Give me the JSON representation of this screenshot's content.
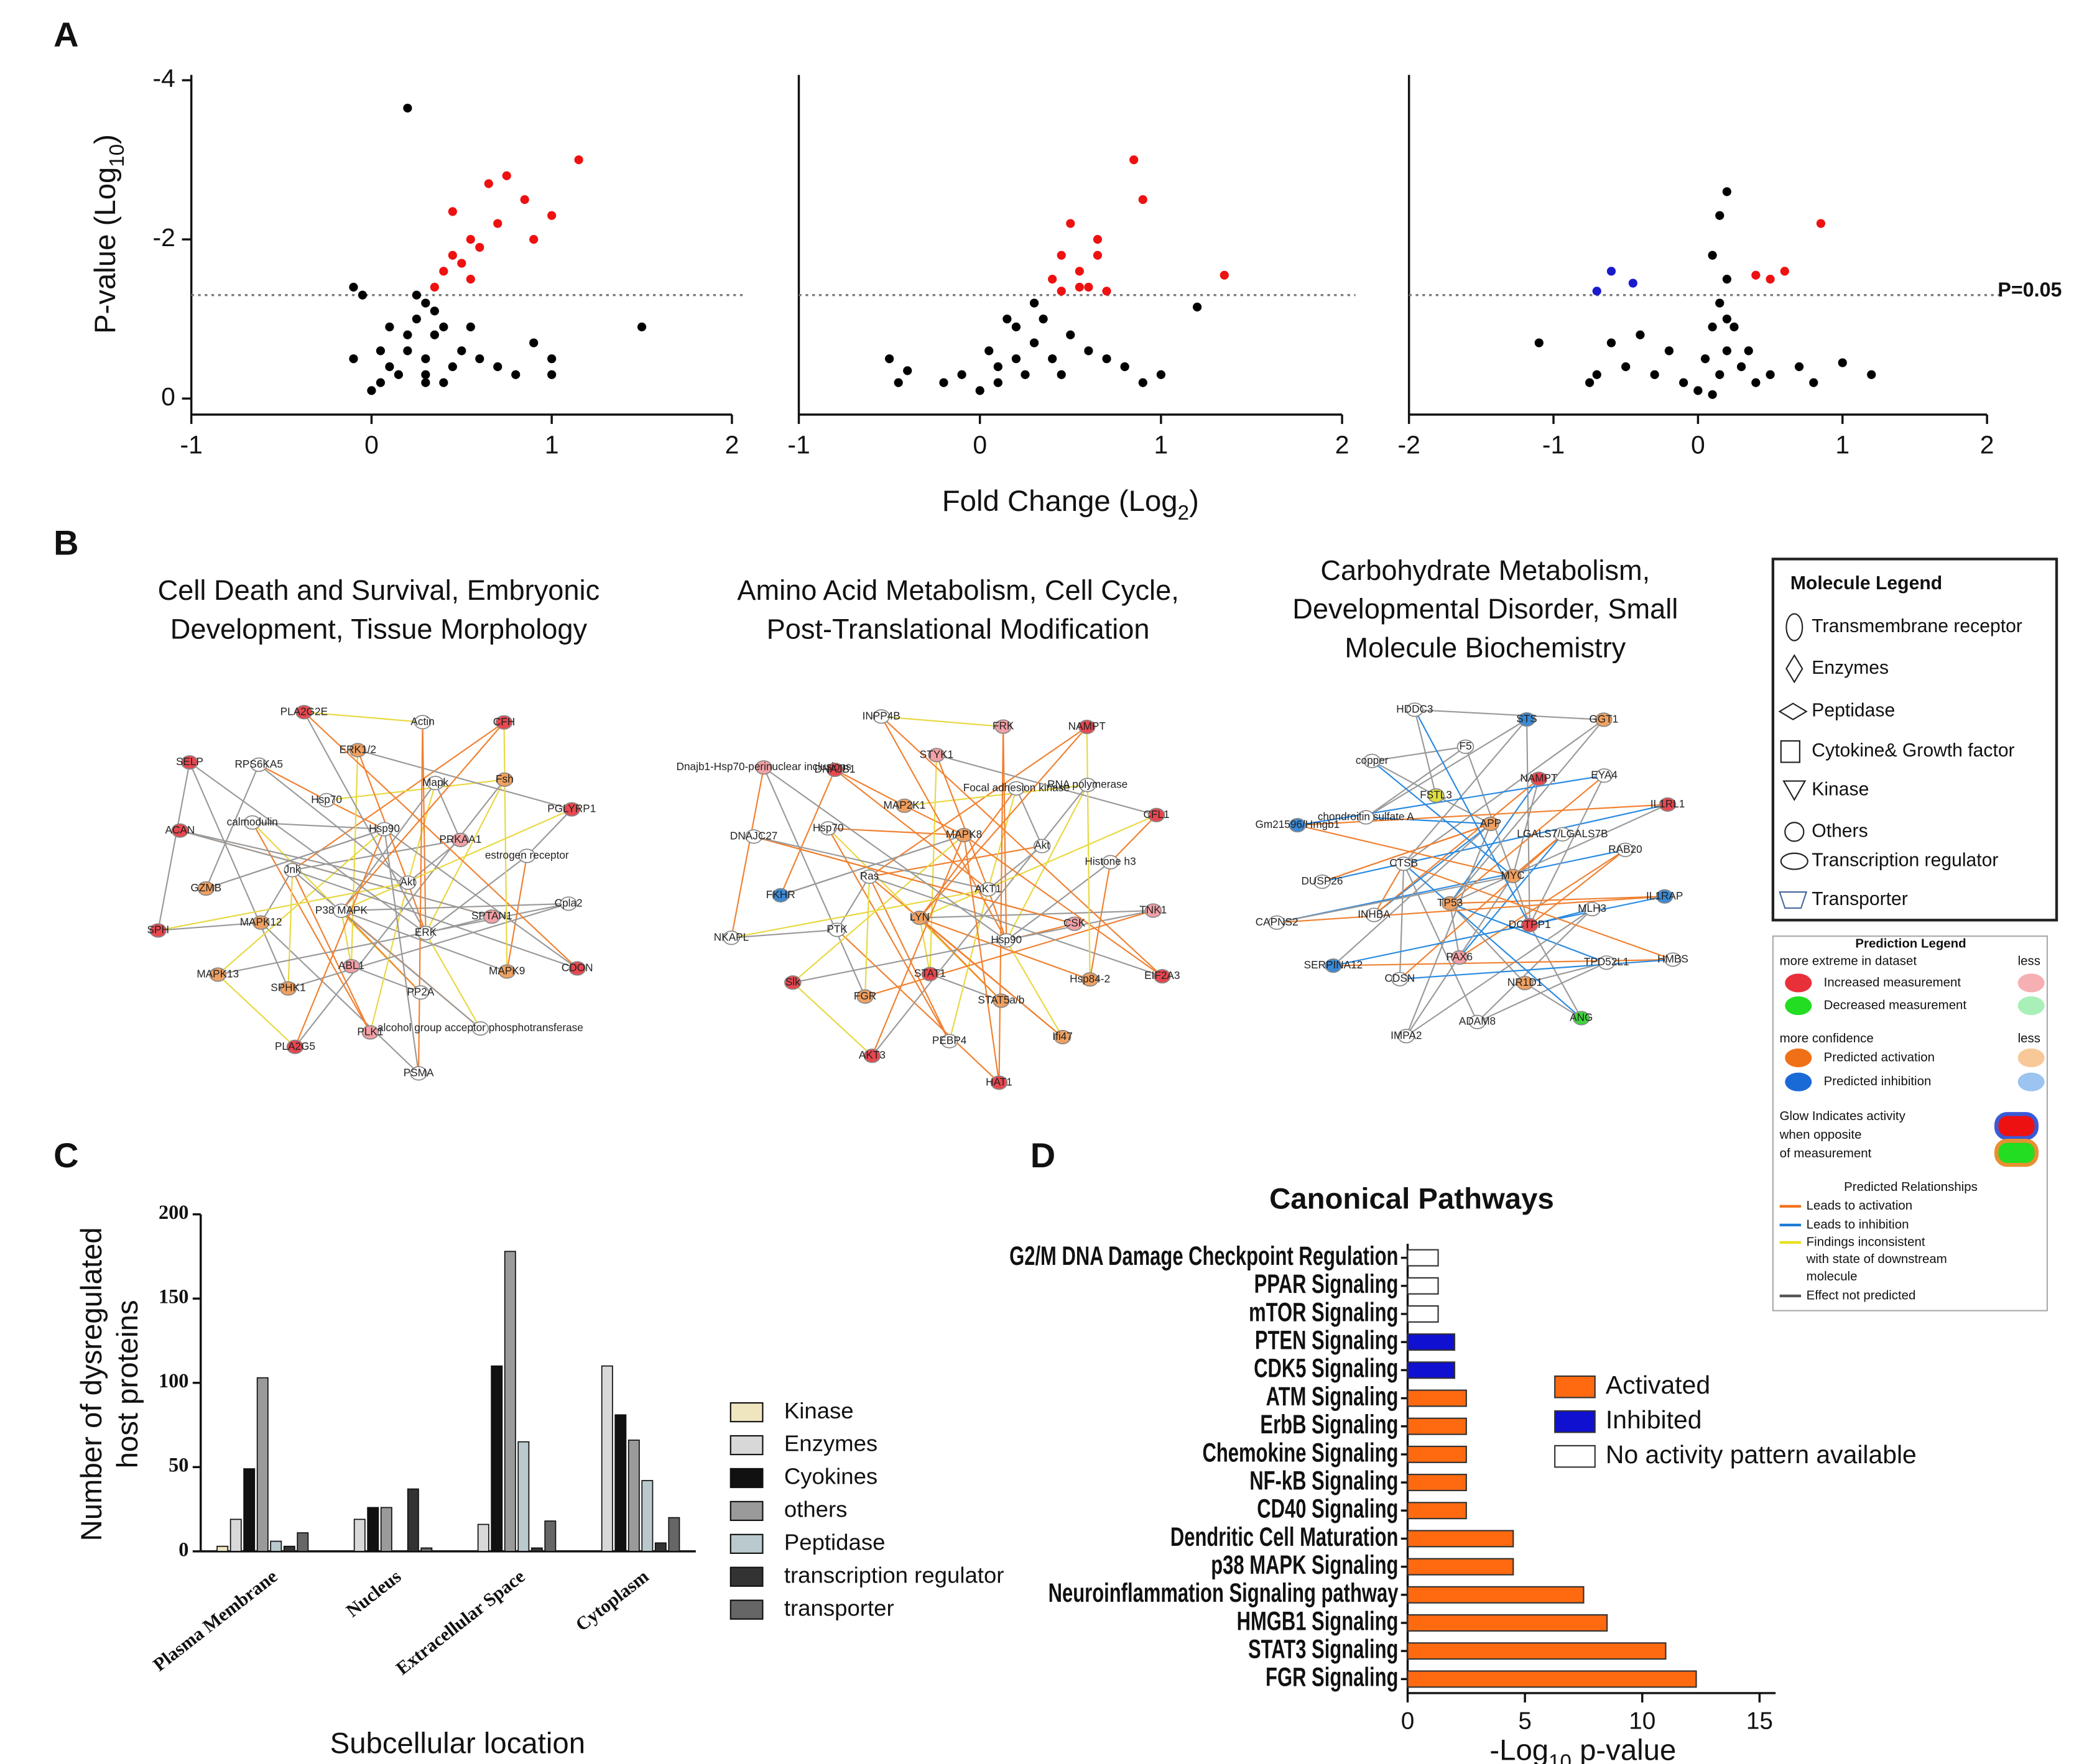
{
  "panel_labels": [
    "A",
    "B",
    "C",
    "D"
  ],
  "chart_data": [
    {
      "type": "scatter",
      "ylabel": [
        "P-value (Log",
        "10",
        ")"
      ],
      "xlim": [
        -1,
        2
      ],
      "xticks": [
        -1,
        0,
        1,
        2
      ],
      "ylim": [
        0,
        -4
      ],
      "yticks": [
        -4,
        -2,
        0
      ],
      "threshold": -1.3,
      "series": [
        {
          "color": "#000000",
          "x": [
            0.2,
            -0.1,
            -0.05,
            1.5,
            0.3,
            0.25,
            0.35,
            0.2,
            0.1,
            0,
            0.05,
            0.15,
            0.3,
            0.4,
            0.5,
            0.6,
            0.7,
            0.8,
            1.0,
            1.0,
            0.9,
            -0.1,
            0.25,
            0.35,
            0.3,
            0.45,
            0.2,
            0.05,
            0.4,
            0.55,
            0.1,
            0.3
          ],
          "values": [
            -3.65,
            -1.4,
            -1.3,
            -0.9,
            -1.2,
            -1.0,
            -0.8,
            -0.6,
            -0.4,
            -0.1,
            -0.2,
            -0.3,
            -0.5,
            -0.9,
            -0.6,
            -0.5,
            -0.4,
            -0.3,
            -0.3,
            -0.5,
            -0.7,
            -0.5,
            -1.3,
            -1.1,
            -0.2,
            -0.4,
            -0.8,
            -0.6,
            -0.2,
            -0.9,
            -0.9,
            -0.3
          ]
        },
        {
          "color": "#ee1111",
          "x": [
            1.15,
            0.75,
            0.65,
            0.85,
            1.0,
            0.9,
            0.7,
            0.45,
            0.55,
            0.6,
            0.5,
            0.4,
            0.45,
            0.55,
            0.35
          ],
          "values": [
            -3.0,
            -2.8,
            -2.7,
            -2.5,
            -2.3,
            -2.0,
            -2.2,
            -2.35,
            -2.0,
            -1.9,
            -1.7,
            -1.6,
            -1.8,
            -1.5,
            -1.4
          ]
        }
      ]
    },
    {
      "type": "scatter",
      "xlabel": [
        "Fold Change (Log",
        "2",
        ")"
      ],
      "xlim": [
        -1,
        2
      ],
      "xticks": [
        -1,
        0,
        1,
        2
      ],
      "ylim": [
        0,
        -4
      ],
      "threshold": -1.3,
      "series": [
        {
          "color": "#000000",
          "x": [
            1.2,
            0.3,
            0.2,
            0.3,
            0.1,
            0,
            0.1,
            -0.2,
            -0.4,
            -0.5,
            -0.45,
            0.4,
            0.5,
            0.6,
            0.7,
            0.8,
            0.2,
            0.15,
            0.25,
            0.05,
            -0.1,
            0.35,
            0.45,
            0.9,
            1.0
          ],
          "values": [
            -1.15,
            -1.2,
            -0.9,
            -0.7,
            -0.4,
            -0.1,
            -0.2,
            -0.2,
            -0.35,
            -0.5,
            -0.2,
            -0.5,
            -0.8,
            -0.6,
            -0.5,
            -0.4,
            -0.5,
            -1.0,
            -0.3,
            -0.6,
            -0.3,
            -1.0,
            -0.3,
            -0.2,
            -0.3
          ]
        },
        {
          "color": "#ee1111",
          "x": [
            0.85,
            0.9,
            0.5,
            0.65,
            0.65,
            0.45,
            0.55,
            0.4,
            0.55,
            0.7,
            0.6,
            0.45,
            1.35
          ],
          "values": [
            -3.0,
            -2.5,
            -2.2,
            -2.0,
            -1.8,
            -1.8,
            -1.6,
            -1.5,
            -1.4,
            -1.35,
            -1.4,
            -1.35,
            -1.55
          ]
        }
      ]
    },
    {
      "type": "scatter",
      "xlim": [
        -2,
        2
      ],
      "xticks": [
        -2,
        -1,
        0,
        1,
        2
      ],
      "ylim": [
        0,
        -4
      ],
      "threshold": -1.3,
      "annotation": "P=0.05",
      "series": [
        {
          "color": "#000000",
          "x": [
            0.2,
            0.15,
            0.1,
            0.2,
            0.15,
            0.1,
            0.2,
            0,
            -0.1,
            -0.3,
            -0.5,
            -0.7,
            -0.75,
            -1.1,
            -0.6,
            -0.4,
            0.3,
            0.5,
            0.7,
            1.0,
            1.2,
            0.25,
            0.05,
            0.35,
            0.15,
            0.8,
            -0.2,
            0.2,
            0.1,
            0.4
          ],
          "values": [
            -2.6,
            -2.3,
            -1.8,
            -1.5,
            -1.2,
            -0.9,
            -0.6,
            -0.1,
            -0.2,
            -0.3,
            -0.4,
            -0.3,
            -0.2,
            -0.7,
            -0.7,
            -0.8,
            -0.4,
            -0.3,
            -0.4,
            -0.45,
            -0.3,
            -0.9,
            -0.5,
            -0.6,
            -0.3,
            -0.2,
            -0.6,
            -1.0,
            -0.05,
            -0.2
          ]
        },
        {
          "color": "#ee1111",
          "x": [
            0.85,
            0.6,
            0.5,
            0.4
          ],
          "values": [
            -2.2,
            -1.6,
            -1.5,
            -1.55
          ]
        },
        {
          "color": "#1a1acc",
          "x": [
            -0.6,
            -0.45,
            -0.7
          ],
          "values": [
            -1.6,
            -1.45,
            -1.35
          ]
        }
      ]
    },
    {
      "type": "bar",
      "ylabel": [
        "Number of dysregulated",
        "host proteins"
      ],
      "xlabel": "Subcellular location",
      "categories": [
        "Plasma Membrane",
        "Nucleus",
        "Extracellular Space",
        "Cytoplasm"
      ],
      "ylim": [
        0,
        200
      ],
      "yticks": [
        0,
        50,
        100,
        150,
        200
      ],
      "series": [
        {
          "name": "Kinase",
          "color": "#efe6c0",
          "values": [
            3,
            0,
            0,
            0
          ]
        },
        {
          "name": "Enzymes",
          "color": "#d8d8d8",
          "values": [
            19,
            19,
            16,
            110
          ]
        },
        {
          "name": "Cyokines",
          "color": "#111111",
          "values": [
            49,
            26,
            110,
            81
          ]
        },
        {
          "name": "others",
          "color": "#9a9a9a",
          "values": [
            103,
            26,
            178,
            66
          ]
        },
        {
          "name": "Peptidase",
          "color": "#b9c9cd",
          "values": [
            6,
            0,
            65,
            42
          ]
        },
        {
          "name": "transcription regulator",
          "color": "#333333",
          "values": [
            3,
            37,
            2,
            5
          ]
        },
        {
          "name": "transporter",
          "color": "#666666",
          "values": [
            11,
            2,
            18,
            20
          ]
        }
      ]
    },
    {
      "type": "hbar",
      "title": "Canonical Pathways",
      "xlabel": [
        "-Log",
        "10",
        " p-value"
      ],
      "xlim": [
        0,
        15
      ],
      "xticks": [
        0,
        5,
        10,
        15
      ],
      "categories": [
        "G2/M DNA Damage Checkpoint Regulation",
        "PPAR Signaling",
        "mTOR Signaling",
        "PTEN Signaling",
        "CDK5 Signaling",
        "ATM Signaling",
        "ErbB Signaling",
        "Chemokine Signaling",
        "NF-kB Signaling",
        "CD40 Signaling",
        "Dendritic Cell Maturation",
        "p38 MAPK Signaling",
        "Neuroinflammation Signaling pathway",
        "HMGB1 Signaling",
        "STAT3 Signaling",
        "FGR Signaling"
      ],
      "values": [
        1.3,
        1.3,
        1.3,
        2.0,
        2.0,
        2.5,
        2.5,
        2.5,
        2.5,
        2.5,
        4.5,
        4.5,
        7.5,
        8.5,
        11,
        12.3
      ],
      "colors": [
        "#ffffff",
        "#ffffff",
        "#ffffff",
        "#1010d0",
        "#1010d0",
        "#ff6a10",
        "#ff6a10",
        "#ff6a10",
        "#ff6a10",
        "#ff6a10",
        "#ff6a10",
        "#ff6a10",
        "#ff6a10",
        "#ff6a10",
        "#ff6a10",
        "#ff6a10"
      ],
      "legend": [
        {
          "name": "Activated",
          "color": "#ff6a10"
        },
        {
          "name": "Inhibited",
          "color": "#1010d0"
        },
        {
          "name": "No activity pattern available",
          "color": "#ffffff"
        }
      ]
    }
  ],
  "networks": [
    {
      "title": [
        "Cell Death and Survival, Embryonic",
        "Development, Tissue Morphology"
      ],
      "nodes": [
        {
          "label": "Akt",
          "color": "#ffffff"
        },
        {
          "label": "P38 MAPK",
          "color": "#ffffff"
        },
        {
          "label": "Hsp90",
          "color": "#ffffff"
        },
        {
          "label": "ERK",
          "color": "#ffffff"
        },
        {
          "label": "Jnk",
          "color": "#ffffff"
        },
        {
          "label": "PRKAA1",
          "color": "#f3a0a6"
        },
        {
          "label": "ABL1",
          "color": "#f3a0a6"
        },
        {
          "label": "Hsp70",
          "color": "#ffffff"
        },
        {
          "label": "SPTAN1",
          "color": "#f3a0a6"
        },
        {
          "label": "MAPK12",
          "color": "#f0a060"
        },
        {
          "label": "Mapk",
          "color": "#ffffff"
        },
        {
          "label": "PP2A",
          "color": "#ffffff"
        },
        {
          "label": "calmodulin",
          "color": "#ffffff"
        },
        {
          "label": "estrogen receptor",
          "color": "#ffffff"
        },
        {
          "label": "SPHK1",
          "color": "#f0a060"
        },
        {
          "label": "ERK1/2",
          "color": "#f0a060"
        },
        {
          "label": "MAPK9",
          "color": "#f0a060"
        },
        {
          "label": "GZMB",
          "color": "#f0a060"
        },
        {
          "label": "Fsh",
          "color": "#f0a060"
        },
        {
          "label": "PLK1",
          "color": "#f3a0a6"
        },
        {
          "label": "RPS6KA5",
          "color": "#ffffff"
        },
        {
          "label": "Cpla2",
          "color": "#ffffff"
        },
        {
          "label": "MAPK13",
          "color": "#f0a060"
        },
        {
          "label": "Actin",
          "color": "#ffffff"
        },
        {
          "label": "alcohol group acceptor phosphotransferase",
          "color": "#ffffff"
        },
        {
          "label": "ACAN",
          "color": "#e8474f"
        },
        {
          "label": "PGLYRP1",
          "color": "#e8474f"
        },
        {
          "label": "PLA2G5",
          "color": "#e8474f"
        },
        {
          "label": "PLA2G2E",
          "color": "#e8474f"
        },
        {
          "label": "CDON",
          "color": "#e8474f"
        },
        {
          "label": "SPH",
          "color": "#e8474f"
        },
        {
          "label": "CFH",
          "color": "#e8474f"
        },
        {
          "label": "PSMA",
          "color": "#ffffff"
        },
        {
          "label": "SELP",
          "color": "#e8474f"
        }
      ]
    },
    {
      "title": [
        "Amino Acid Metabolism, Cell Cycle,",
        "Post-Translational Modification"
      ],
      "nodes": [
        {
          "label": "AKT1",
          "color": "#ffffff"
        },
        {
          "label": "LYN",
          "color": "#f0a060"
        },
        {
          "label": "MAPK8",
          "color": "#f0a060"
        },
        {
          "label": "Hsp90",
          "color": "#ffffff"
        },
        {
          "label": "Ras",
          "color": "#ffffff"
        },
        {
          "label": "Akt",
          "color": "#ffffff"
        },
        {
          "label": "STAT1",
          "color": "#e8474f"
        },
        {
          "label": "MAP2K1",
          "color": "#f0a060"
        },
        {
          "label": "CSK",
          "color": "#f3a0a6"
        },
        {
          "label": "PTK",
          "color": "#ffffff"
        },
        {
          "label": "Focal adhesion kinase",
          "color": "#ffffff"
        },
        {
          "label": "STAT5a/b",
          "color": "#f0a060"
        },
        {
          "label": "Hsp70",
          "color": "#ffffff"
        },
        {
          "label": "Histone h3",
          "color": "#ffffff"
        },
        {
          "label": "FGR",
          "color": "#f0a060"
        },
        {
          "label": "STYK1",
          "color": "#f3a0a6"
        },
        {
          "label": "Hsp84-2",
          "color": "#f0a060"
        },
        {
          "label": "FKHR",
          "color": "#3a8ad6"
        },
        {
          "label": "RNA polymerase",
          "color": "#ffffff"
        },
        {
          "label": "PEBP4",
          "color": "#ffffff"
        },
        {
          "label": "DNAJB1",
          "color": "#e8474f"
        },
        {
          "label": "TNK1",
          "color": "#f3a0a6"
        },
        {
          "label": "Slk",
          "color": "#e8474f"
        },
        {
          "label": "FRK",
          "color": "#f3a0a6"
        },
        {
          "label": "Ifi47",
          "color": "#f0a060"
        },
        {
          "label": "DNAJC27",
          "color": "#ffffff"
        },
        {
          "label": "CFL1",
          "color": "#e8474f"
        },
        {
          "label": "AKT3",
          "color": "#e8474f"
        },
        {
          "label": "INPP4B",
          "color": "#ffffff"
        },
        {
          "label": "EIF2A3",
          "color": "#e8474f"
        },
        {
          "label": "NKAPL",
          "color": "#ffffff"
        },
        {
          "label": "NAMPT",
          "color": "#e8474f"
        },
        {
          "label": "HAT1",
          "color": "#e8474f"
        },
        {
          "label": "Dnajb1-Hsp70-perinuclear inclusions",
          "color": "#f3a0a6"
        }
      ]
    },
    {
      "title": [
        "Carbohydrate Metabolism,",
        "Developmental Disorder, Small",
        "Molecule Biochemistry"
      ],
      "nodes": [
        {
          "label": "MYC",
          "color": "#f0a060"
        },
        {
          "label": "TP53",
          "color": "#f0a060"
        },
        {
          "label": "APP",
          "color": "#f0a060"
        },
        {
          "label": "DCTPP1",
          "color": "#e8474f"
        },
        {
          "label": "CTSB",
          "color": "#ffffff"
        },
        {
          "label": "LGALS7/LGALS7B",
          "color": "#ffffff"
        },
        {
          "label": "PAX6",
          "color": "#f3a0a6"
        },
        {
          "label": "FSTL3",
          "color": "#e0e040"
        },
        {
          "label": "MLH3",
          "color": "#ffffff"
        },
        {
          "label": "INHBA",
          "color": "#ffffff"
        },
        {
          "label": "NAMPT",
          "color": "#e8474f"
        },
        {
          "label": "NR1D1",
          "color": "#f0a060"
        },
        {
          "label": "chondroitin sulfate A",
          "color": "#ffffff"
        },
        {
          "label": "RAB20",
          "color": "#ffffff"
        },
        {
          "label": "CDSN",
          "color": "#ffffff"
        },
        {
          "label": "F5",
          "color": "#ffffff"
        },
        {
          "label": "TPD52L1",
          "color": "#ffffff"
        },
        {
          "label": "DUSP26",
          "color": "#ffffff"
        },
        {
          "label": "EYA4",
          "color": "#ffffff"
        },
        {
          "label": "ADAM8",
          "color": "#ffffff"
        },
        {
          "label": "copper",
          "color": "#ffffff"
        },
        {
          "label": "IL1RAP",
          "color": "#3a8ad6"
        },
        {
          "label": "SERPINA12",
          "color": "#3a8ad6"
        },
        {
          "label": "STS",
          "color": "#3a8ad6"
        },
        {
          "label": "ANG",
          "color": "#3ad63a"
        },
        {
          "label": "Gm21596/Hmgb1",
          "color": "#3a8ad6"
        },
        {
          "label": "IL1RL1",
          "color": "#e8474f"
        },
        {
          "label": "IMPA2",
          "color": "#ffffff"
        },
        {
          "label": "HDDC3",
          "color": "#ffffff"
        },
        {
          "label": "HMBS",
          "color": "#ffffff"
        },
        {
          "label": "CAPNS2",
          "color": "#ffffff"
        },
        {
          "label": "GGT1",
          "color": "#f0a060"
        }
      ]
    }
  ],
  "molecule_legend": {
    "title": "Molecule Legend",
    "entries": [
      "Transmembrane receptor",
      "Enzymes",
      "Peptidase",
      "Cytokine& Growth factor",
      "Kinase",
      "Others",
      "Transcription regulator",
      "Transporter"
    ]
  },
  "prediction_legend": {
    "title": "Prediction Legend",
    "measure_header": [
      "more extreme in dataset",
      "less"
    ],
    "measure": [
      "Increased measurement",
      "Decreased measurement"
    ],
    "confidence_header": [
      "more confidence",
      "less"
    ],
    "confidence": [
      "Predicted activation",
      "Predicted inhibition"
    ],
    "glow": [
      "Glow Indicates activity",
      "when opposite",
      "of measurement"
    ],
    "relationships_title": "Predicted Relationships",
    "relationships": [
      [
        "Leads to activation"
      ],
      [
        "Leads to inhibition"
      ],
      [
        "Findings inconsistent",
        "with state of downstream",
        "molecule"
      ],
      [
        "Effect not predicted"
      ]
    ]
  }
}
